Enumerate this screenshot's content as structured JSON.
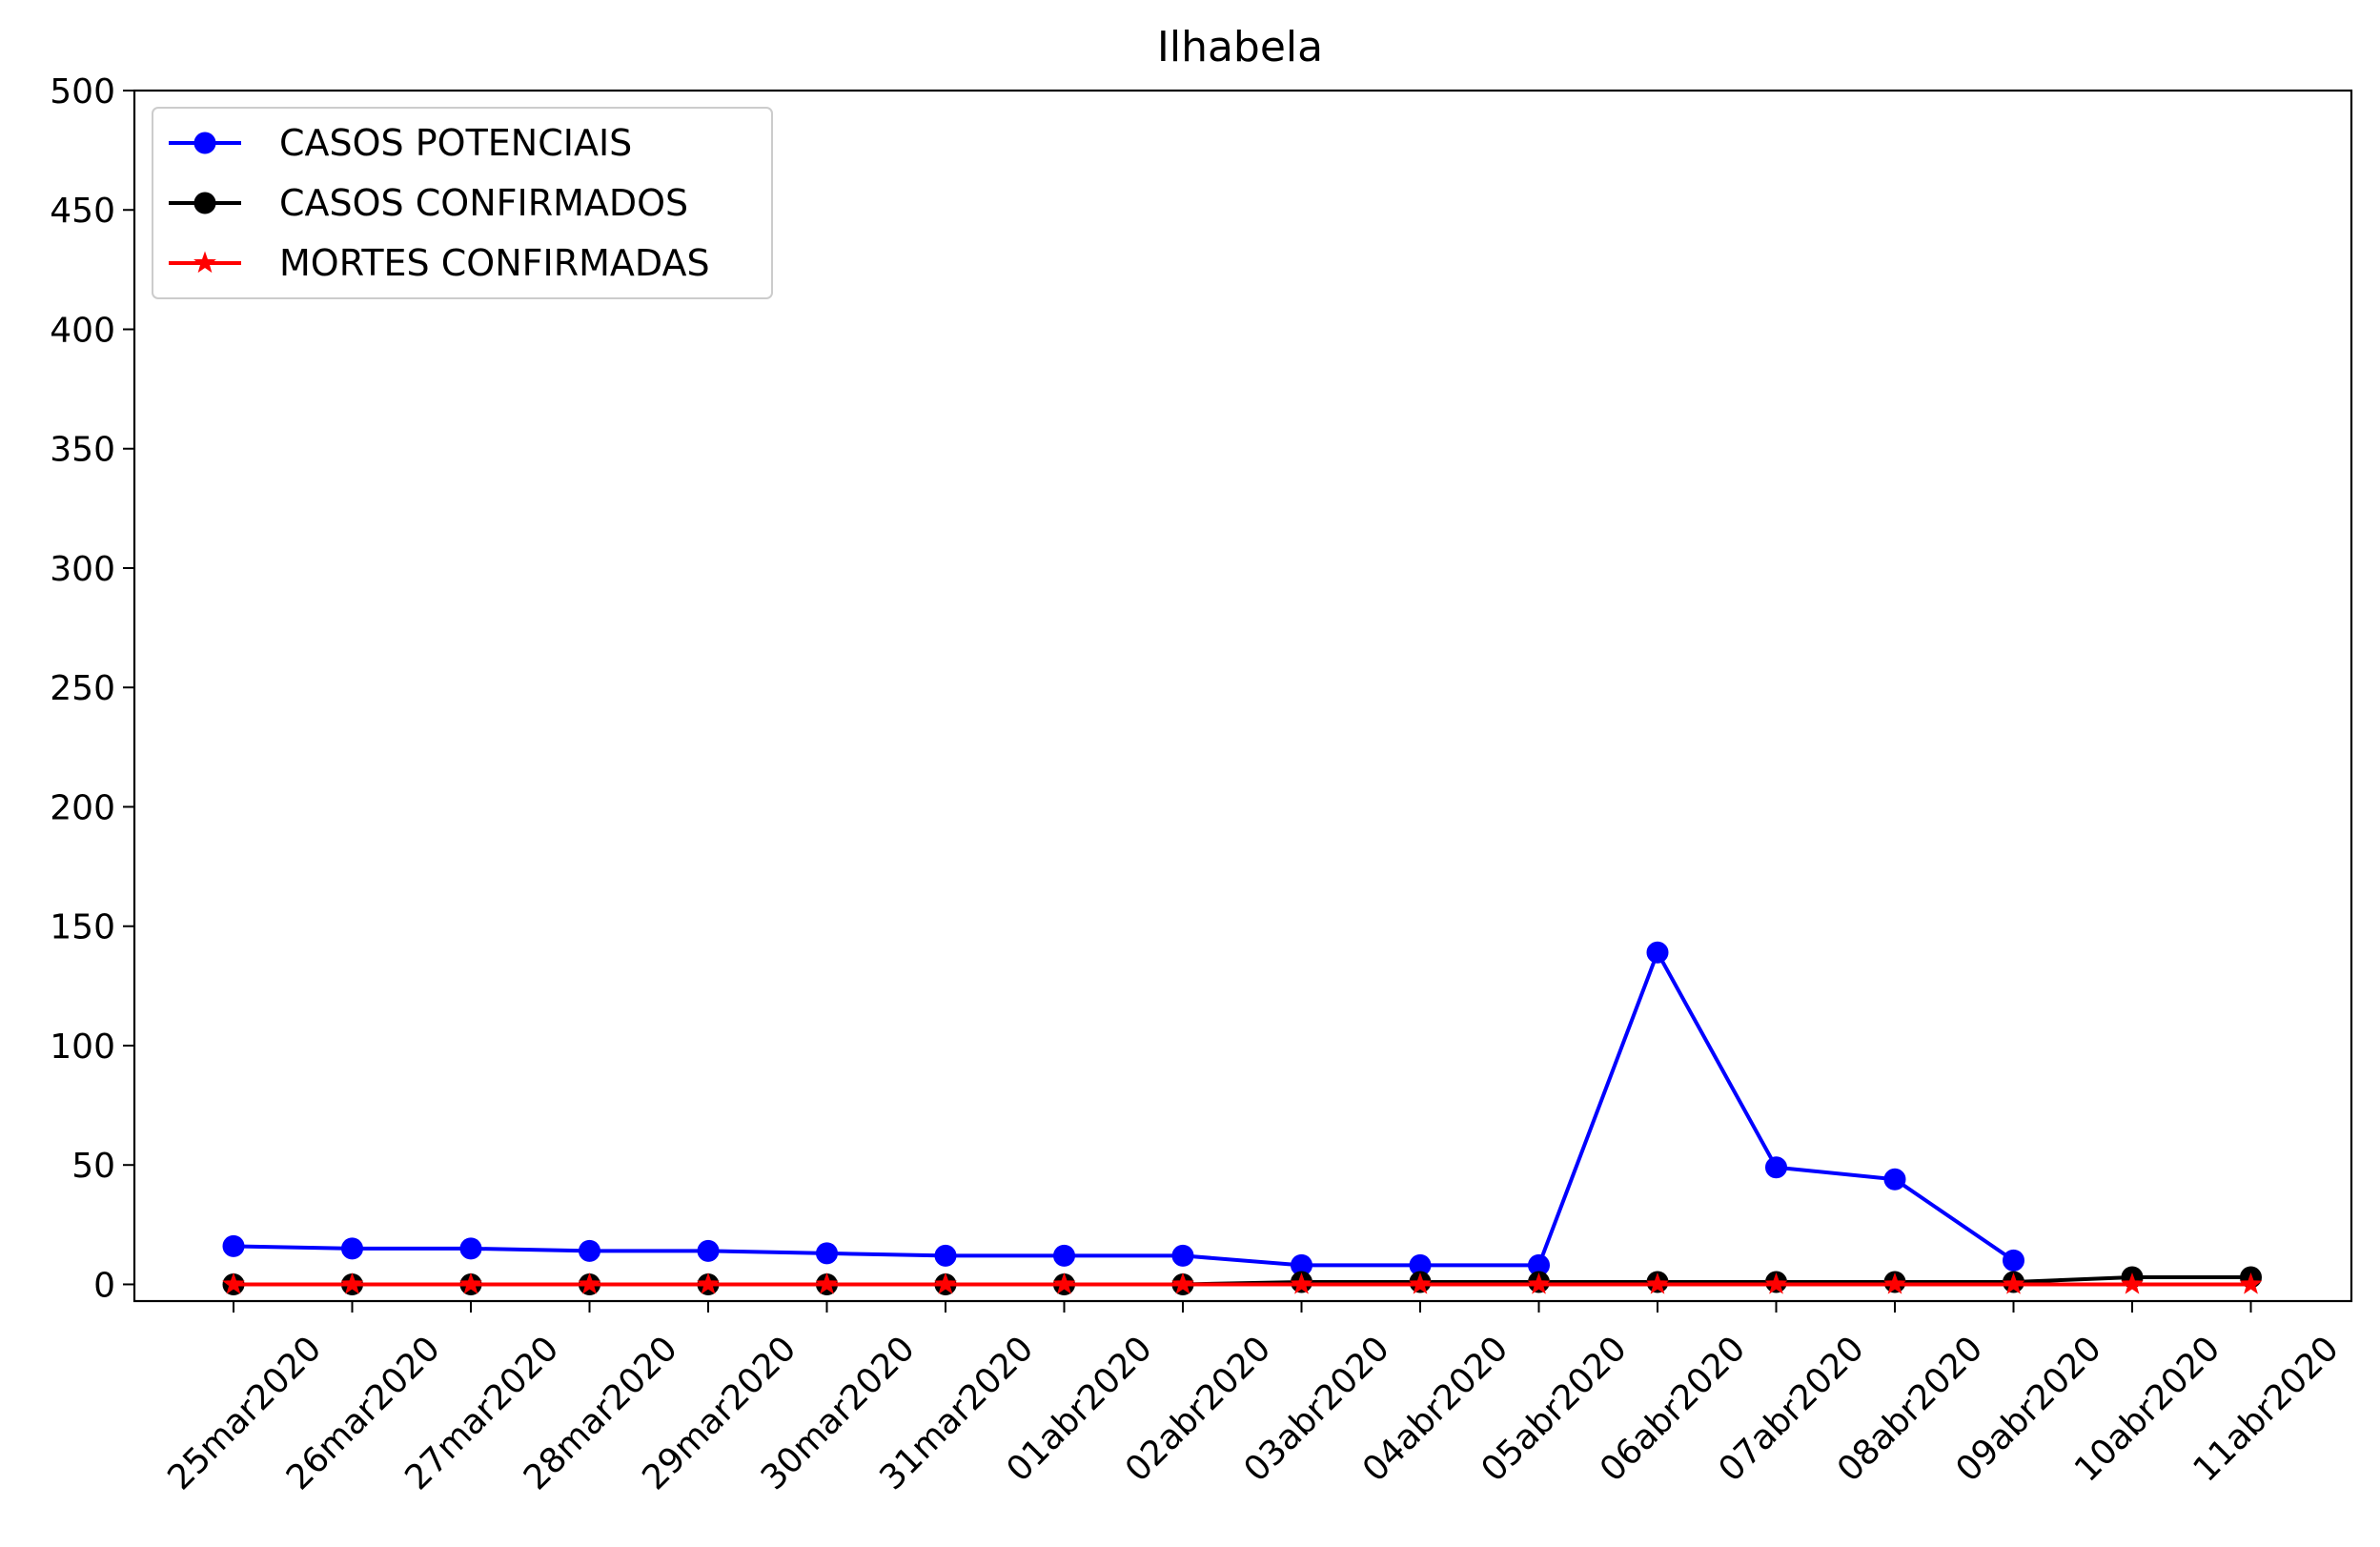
{
  "chart_data": {
    "type": "line",
    "title": "Ilhabela",
    "xlabel": "",
    "ylabel": "",
    "categories": [
      "25mar2020",
      "26mar2020",
      "27mar2020",
      "28mar2020",
      "29mar2020",
      "30mar2020",
      "31mar2020",
      "01abr2020",
      "02abr2020",
      "03abr2020",
      "04abr2020",
      "05abr2020",
      "06abr2020",
      "07abr2020",
      "08abr2020",
      "09abr2020",
      "10abr2020",
      "11abr2020"
    ],
    "ylim": [
      -7,
      500
    ],
    "yticks": [
      0,
      50,
      100,
      150,
      200,
      250,
      300,
      350,
      400,
      450,
      500
    ],
    "grid": false,
    "legend_position": "top-left",
    "series": [
      {
        "name": "CASOS POTENCIAIS",
        "color": "#0000ff",
        "marker": "circle",
        "values": [
          16,
          15,
          15,
          14,
          14,
          13,
          12,
          12,
          12,
          8,
          8,
          8,
          139,
          49,
          44,
          10,
          null,
          null
        ]
      },
      {
        "name": "CASOS CONFIRMADOS",
        "color": "#000000",
        "marker": "circle",
        "values": [
          0,
          0,
          0,
          0,
          0,
          0,
          0,
          0,
          0,
          1,
          1,
          1,
          1,
          1,
          1,
          1,
          3,
          3
        ]
      },
      {
        "name": "MORTES CONFIRMADAS",
        "color": "#ff0000",
        "marker": "star",
        "values": [
          0,
          0,
          0,
          0,
          0,
          0,
          0,
          0,
          0,
          0,
          0,
          0,
          0,
          0,
          0,
          0,
          0,
          0
        ]
      }
    ]
  }
}
